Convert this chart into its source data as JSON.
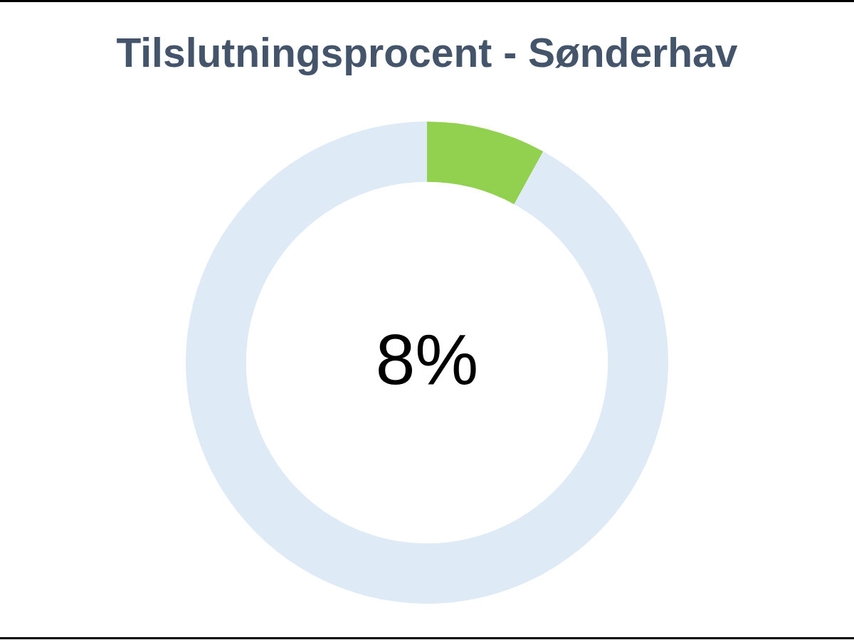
{
  "chart_data": {
    "type": "donut",
    "title": "Tilslutningsprocent - Sønderhav",
    "categories": [
      null,
      null
    ],
    "values": [
      8,
      92
    ],
    "colors": [
      "#92d050",
      "#deeaf6"
    ],
    "annotations": [
      "8%"
    ]
  }
}
